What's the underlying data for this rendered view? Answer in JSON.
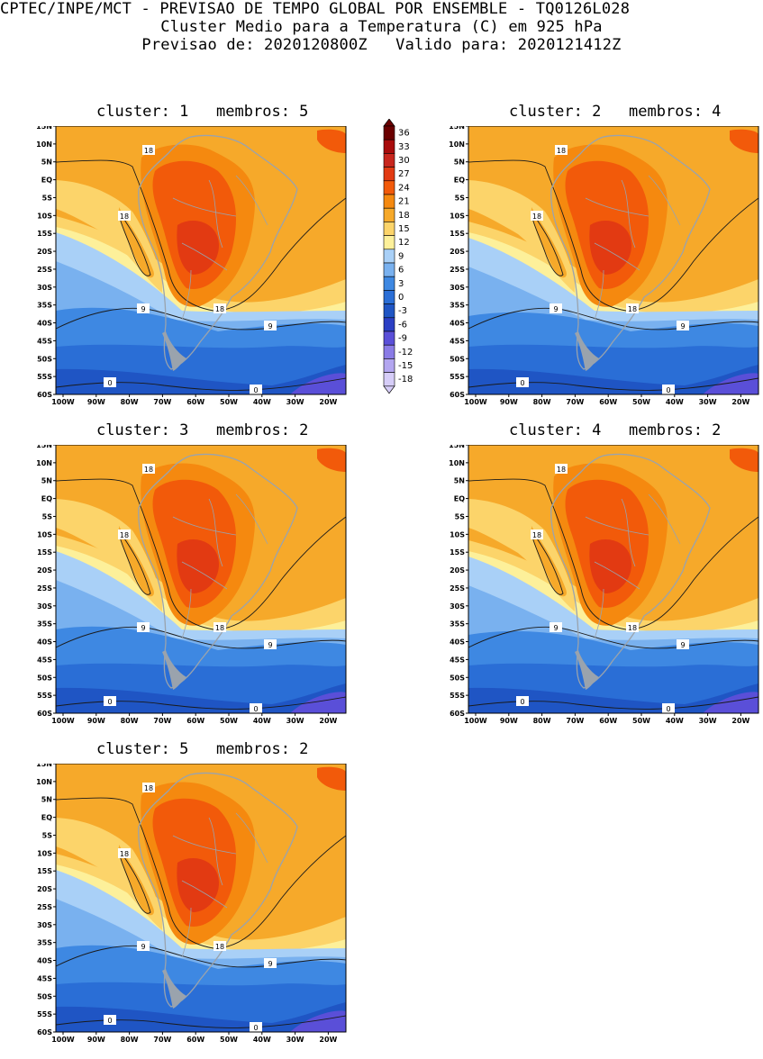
{
  "header": {
    "line1": "CPTEC/INPE/MCT - PREVISAO DE TEMPO GLOBAL POR ENSEMBLE - TQ0126L028",
    "line2": "Cluster Medio para a Temperatura (C) em 925 hPa",
    "line3": "Previsao de: 2020120800Z   Valido para: 2020121412Z"
  },
  "axes": {
    "lat_labels": [
      "15N",
      "10N",
      "5N",
      "EQ",
      "5S",
      "10S",
      "15S",
      "20S",
      "25S",
      "30S",
      "35S",
      "40S",
      "45S",
      "50S",
      "55S",
      "60S"
    ],
    "lon_labels": [
      "100W",
      "90W",
      "80W",
      "70W",
      "60W",
      "50W",
      "40W",
      "30W",
      "20W"
    ]
  },
  "colorbar": {
    "levels": [
      "36",
      "33",
      "30",
      "27",
      "24",
      "21",
      "18",
      "15",
      "12",
      "9",
      "6",
      "3",
      "0",
      "-3",
      "-6",
      "-9",
      "-12",
      "-15",
      "-18"
    ],
    "colors": [
      "#6b0000",
      "#a80c0c",
      "#c8261d",
      "#e23a12",
      "#f25a0a",
      "#f5890f",
      "#f6a92a",
      "#fcd46a",
      "#fdf09a",
      "#a9d0f7",
      "#79b1ef",
      "#3e88e2",
      "#2a6ed6",
      "#1f55c4",
      "#2b3fc4",
      "#5a4fd8",
      "#8a7be6",
      "#b3a6f0",
      "#d6cdf8"
    ]
  },
  "panels": [
    {
      "title": "cluster: 1   membros: 5",
      "contour_labels": [
        "18",
        "18",
        "18",
        "9",
        "9",
        "0",
        "0"
      ]
    },
    {
      "title": "cluster: 2   membros: 4",
      "contour_labels": [
        "18",
        "18",
        "18",
        "9",
        "9",
        "0",
        "0"
      ]
    },
    {
      "title": "cluster: 3   membros: 2",
      "contour_labels": [
        "18",
        "18",
        "18",
        "9",
        "9",
        "0",
        "0"
      ]
    },
    {
      "title": "cluster: 4   membros: 2",
      "contour_labels": [
        "18",
        "18",
        "18",
        "9",
        "9",
        "0",
        "0"
      ]
    },
    {
      "title": "cluster: 5   membros: 2",
      "contour_labels": [
        "18",
        "18",
        "18",
        "9",
        "9",
        "0",
        "0"
      ]
    }
  ]
}
